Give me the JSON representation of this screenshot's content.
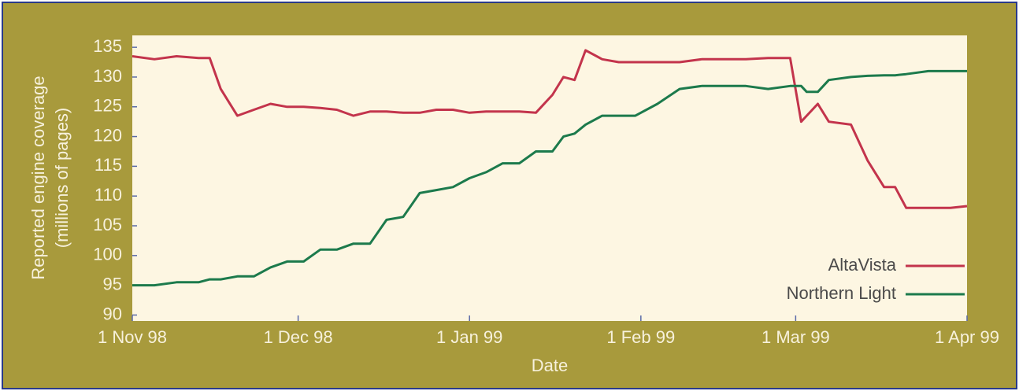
{
  "chart_data": {
    "type": "line",
    "ylabel": [
      "Reported engine coverage",
      "(millions of pages)"
    ],
    "xlabel": "Date",
    "x": [
      "1998-11-01",
      "1998-11-05",
      "1998-11-09",
      "1998-11-13",
      "1998-11-15",
      "1998-11-17",
      "1998-11-20",
      "1998-11-23",
      "1998-11-26",
      "1998-11-29",
      "1998-12-02",
      "1998-12-05",
      "1998-12-08",
      "1998-12-11",
      "1998-12-14",
      "1998-12-17",
      "1998-12-20",
      "1998-12-23",
      "1998-12-26",
      "1998-12-29",
      "1999-01-01",
      "1999-01-04",
      "1999-01-07",
      "1999-01-10",
      "1999-01-13",
      "1999-01-16",
      "1999-01-18",
      "1999-01-20",
      "1999-01-22",
      "1999-01-25",
      "1999-01-28",
      "1999-01-31",
      "1999-02-04",
      "1999-02-08",
      "1999-02-12",
      "1999-02-16",
      "1999-02-20",
      "1999-02-24",
      "1999-02-28",
      "1999-03-02",
      "1999-03-03",
      "1999-03-05",
      "1999-03-07",
      "1999-03-11",
      "1999-03-14",
      "1999-03-17",
      "1999-03-19",
      "1999-03-21",
      "1999-03-25",
      "1999-03-29",
      "1999-04-01"
    ],
    "series": [
      {
        "name": "AltaVista",
        "color": "#c3344c",
        "values": [
          133.5,
          133,
          133.5,
          133.2,
          133.2,
          128,
          123.5,
          124.5,
          125.5,
          125,
          125,
          124.8,
          124.5,
          123.5,
          124.2,
          124.2,
          124,
          124,
          124.5,
          124.5,
          124,
          124.2,
          124.2,
          124.2,
          124,
          127,
          130,
          129.5,
          134.5,
          133,
          132.5,
          132.5,
          132.5,
          132.5,
          133,
          133,
          133,
          133.2,
          133.2,
          122.5,
          123.5,
          125.5,
          122.5,
          122,
          116,
          111.5,
          111.5,
          108,
          108,
          108,
          108.3
        ]
      },
      {
        "name": "Northern Light",
        "color": "#1c7a4c",
        "values": [
          95,
          95,
          95.5,
          95.5,
          96,
          96,
          96.5,
          96.5,
          98,
          99,
          99,
          101,
          101,
          102,
          102,
          106,
          106.5,
          110.5,
          111,
          111.5,
          113,
          114,
          115.5,
          115.5,
          117.5,
          117.5,
          120,
          120.5,
          122,
          123.5,
          123.5,
          123.5,
          125.5,
          128,
          128.5,
          128.5,
          128.5,
          128,
          128.5,
          128.5,
          127.5,
          127.5,
          129.5,
          130,
          130.2,
          130.3,
          130.3,
          130.5,
          131,
          131,
          131
        ]
      }
    ],
    "xlim": [
      "1998-11-01",
      "1999-04-01"
    ],
    "xticks": [
      {
        "value": "1998-11-01",
        "label": "1 Nov 98"
      },
      {
        "value": "1998-12-01",
        "label": "1 Dec 98"
      },
      {
        "value": "1999-01-01",
        "label": "1 Jan 99"
      },
      {
        "value": "1999-02-01",
        "label": "1 Feb 99"
      },
      {
        "value": "1999-03-01",
        "label": "1 Mar 99"
      },
      {
        "value": "1999-04-01",
        "label": "1 Apr 99"
      }
    ],
    "ylim": [
      89,
      137
    ],
    "yticks": [
      90,
      95,
      100,
      105,
      110,
      115,
      120,
      125,
      130,
      135
    ],
    "legend": "lower right"
  }
}
